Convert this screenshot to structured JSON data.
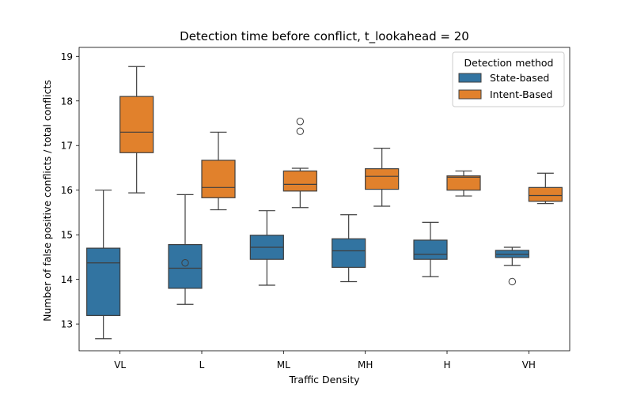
{
  "chart_data": {
    "type": "boxplot",
    "title": "Detection time before conflict, t_lookahead = 20",
    "xlabel": "Traffic Density",
    "ylabel": "Number of false positive conflicts / total conflicts",
    "ylim": [
      12.4,
      19.2
    ],
    "yticks": [
      13,
      14,
      15,
      16,
      17,
      18,
      19
    ],
    "categories": [
      "VL",
      "L",
      "ML",
      "MH",
      "H",
      "VH"
    ],
    "legend": {
      "title": "Detection method",
      "position": "top-right"
    },
    "grid": false,
    "series": [
      {
        "name": "State-based",
        "color": "#3274a1",
        "boxes": [
          {
            "whislo": 12.67,
            "q1": 13.19,
            "med": 14.37,
            "q3": 14.7,
            "whishi": 16.0,
            "fliers": []
          },
          {
            "whislo": 13.44,
            "q1": 13.8,
            "med": 14.25,
            "q3": 14.78,
            "whishi": 15.9,
            "fliers": [
              14.37
            ]
          },
          {
            "whislo": 13.87,
            "q1": 14.45,
            "med": 14.72,
            "q3": 14.99,
            "whishi": 15.54,
            "fliers": []
          },
          {
            "whislo": 13.95,
            "q1": 14.27,
            "med": 14.64,
            "q3": 14.91,
            "whishi": 15.45,
            "fliers": []
          },
          {
            "whislo": 14.06,
            "q1": 14.45,
            "med": 14.56,
            "q3": 14.88,
            "whishi": 15.28,
            "fliers": []
          },
          {
            "whislo": 14.31,
            "q1": 14.49,
            "med": 14.56,
            "q3": 14.65,
            "whishi": 14.72,
            "fliers": [
              13.95
            ]
          }
        ]
      },
      {
        "name": "Intent-Based",
        "color": "#e1812c",
        "boxes": [
          {
            "whislo": 15.94,
            "q1": 16.84,
            "med": 17.3,
            "q3": 18.1,
            "whishi": 18.77,
            "fliers": []
          },
          {
            "whislo": 15.56,
            "q1": 15.83,
            "med": 16.06,
            "q3": 16.67,
            "whishi": 17.3,
            "fliers": []
          },
          {
            "whislo": 15.61,
            "q1": 15.98,
            "med": 16.13,
            "q3": 16.43,
            "whishi": 16.49,
            "fliers": [
              17.32,
              17.54
            ]
          },
          {
            "whislo": 15.64,
            "q1": 16.02,
            "med": 16.31,
            "q3": 16.48,
            "whishi": 16.94,
            "fliers": []
          },
          {
            "whislo": 15.87,
            "q1": 16.0,
            "med": 16.29,
            "q3": 16.32,
            "whishi": 16.43,
            "fliers": []
          },
          {
            "whislo": 15.7,
            "q1": 15.75,
            "med": 15.88,
            "q3": 16.06,
            "whishi": 16.38,
            "fliers": []
          }
        ]
      }
    ]
  }
}
